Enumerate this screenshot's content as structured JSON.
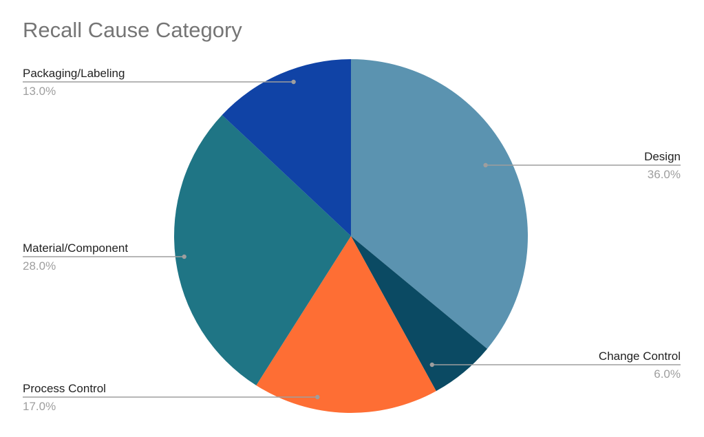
{
  "chart_data": {
    "type": "pie",
    "title": "Recall Cause Category",
    "slices": [
      {
        "label": "Design",
        "value": 36.0,
        "pct_label": "36.0%",
        "color": "#5b93b0"
      },
      {
        "label": "Change Control",
        "value": 6.0,
        "pct_label": "6.0%",
        "color": "#0b4a63"
      },
      {
        "label": "Process Control",
        "value": 17.0,
        "pct_label": "17.0%",
        "color": "#fe6e34"
      },
      {
        "label": "Material/Component",
        "value": 28.0,
        "pct_label": "28.0%",
        "color": "#1f7585"
      },
      {
        "label": "Packaging/Labeling",
        "value": 13.0,
        "pct_label": "13.0%",
        "color": "#1043a6"
      }
    ],
    "start_angle": "top",
    "direction": "clockwise",
    "legend": "none",
    "label_style": "leader-lines"
  }
}
